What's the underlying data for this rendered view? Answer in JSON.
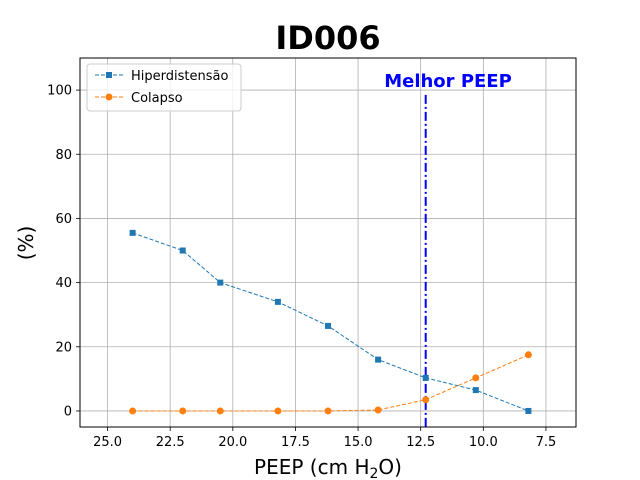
{
  "chart_data": {
    "type": "line",
    "title": "ID006",
    "xlabel_main": "PEEP (cm H",
    "xlabel_sub": "2",
    "xlabel_end": "O)",
    "ylabel": "(%)",
    "x_reversed": true,
    "xlim": [
      26.1,
      6.3
    ],
    "ylim": [
      -5,
      110
    ],
    "xticks": [
      25.0,
      22.5,
      20.0,
      17.5,
      15.0,
      12.5,
      10.0,
      7.5
    ],
    "xtick_labels": [
      "25.0",
      "22.5",
      "20.0",
      "17.5",
      "15.0",
      "12.5",
      "10.0",
      "7.5"
    ],
    "yticks": [
      0,
      20,
      40,
      60,
      80,
      100
    ],
    "ytick_labels": [
      "0",
      "20",
      "40",
      "60",
      "80",
      "100"
    ],
    "grid": true,
    "legend_position": "top-left",
    "x": [
      24.0,
      22.0,
      20.5,
      18.2,
      16.2,
      14.2,
      12.3,
      10.3,
      8.2
    ],
    "series": [
      {
        "name": "Hiperdistensão",
        "marker": "square",
        "color": "#1f77b4",
        "values": [
          55.5,
          50.0,
          40.0,
          34.0,
          26.5,
          16.0,
          10.3,
          6.5,
          0.0
        ]
      },
      {
        "name": "Colapso",
        "marker": "circle",
        "color": "#ff7f0e",
        "values": [
          0.0,
          0.0,
          0.0,
          0.0,
          0.0,
          0.3,
          3.5,
          10.3,
          17.5
        ]
      }
    ],
    "vline": {
      "x": 12.3,
      "label": "Melhor PEEP",
      "color": "#0000ff"
    }
  }
}
